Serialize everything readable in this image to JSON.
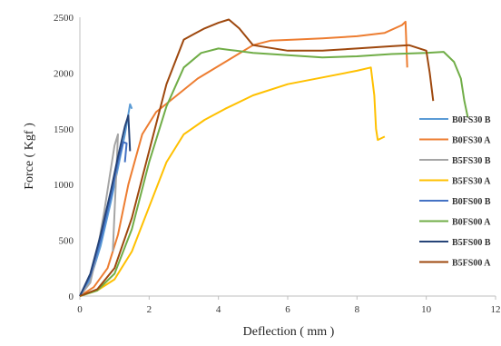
{
  "chart_data": {
    "type": "line",
    "title": "",
    "xlabel": "Deflection ( mm )",
    "ylabel": "Force ( Kgf )",
    "xlim": [
      0,
      12
    ],
    "ylim": [
      0,
      2500
    ],
    "x_ticks": [
      0,
      2,
      4,
      6,
      8,
      10,
      12
    ],
    "x_tick_labels": [
      "0",
      "2",
      "4",
      "6",
      "8",
      "10",
      "12"
    ],
    "y_ticks": [
      0,
      500,
      1000,
      1500,
      2000,
      2500
    ],
    "y_tick_labels": [
      "0",
      "500",
      "1000",
      "1500",
      "2000",
      "2500"
    ],
    "grid": false,
    "legend_position": "right",
    "series": [
      {
        "name": "B0FS30 B",
        "color": "#5b9bd5",
        "x": [
          0,
          0.3,
          0.6,
          0.9,
          1.1,
          1.3,
          1.45,
          1.5
        ],
        "y": [
          0,
          150,
          450,
          850,
          1150,
          1450,
          1720,
          1680
        ]
      },
      {
        "name": "B0FS30 A",
        "color": "#ed7d31",
        "x": [
          0,
          0.4,
          0.8,
          1.1,
          1.4,
          1.8,
          2.2,
          2.8,
          3.4,
          4.2,
          5.0,
          5.5,
          6.2,
          7.0,
          8.0,
          8.8,
          9.3,
          9.4,
          9.45
        ],
        "y": [
          0,
          80,
          250,
          550,
          1000,
          1450,
          1650,
          1800,
          1950,
          2100,
          2250,
          2290,
          2300,
          2310,
          2330,
          2360,
          2430,
          2460,
          2050
        ]
      },
      {
        "name": "B5FS30 B",
        "color": "#a5a5a5",
        "x": [
          0,
          0.3,
          0.5,
          0.7,
          0.85,
          1.0,
          1.1,
          0.95
        ],
        "y": [
          0,
          120,
          400,
          750,
          1050,
          1350,
          1450,
          400
        ]
      },
      {
        "name": "B5FS30 A",
        "color": "#ffc000",
        "x": [
          0,
          0.5,
          1.0,
          1.5,
          2.0,
          2.5,
          3.0,
          3.6,
          4.2,
          5.0,
          6.0,
          7.0,
          8.0,
          8.4,
          8.5,
          8.55,
          8.6,
          8.8
        ],
        "y": [
          0,
          50,
          150,
          400,
          800,
          1200,
          1450,
          1580,
          1680,
          1800,
          1900,
          1960,
          2020,
          2050,
          1800,
          1500,
          1400,
          1430
        ]
      },
      {
        "name": "B0FS00 B",
        "color": "#4472c4",
        "x": [
          0,
          0.3,
          0.6,
          0.9,
          1.1,
          1.25,
          1.35,
          1.3
        ],
        "y": [
          0,
          180,
          500,
          900,
          1200,
          1380,
          1370,
          1200
        ]
      },
      {
        "name": "B0FS00 A",
        "color": "#70ad47",
        "x": [
          0,
          0.5,
          1.0,
          1.5,
          2.0,
          2.5,
          3.0,
          3.5,
          4.0,
          4.5,
          5.0,
          6.0,
          7.0,
          8.0,
          9.0,
          10.0,
          10.5,
          10.8,
          11.0,
          11.1,
          11.2
        ],
        "y": [
          0,
          50,
          200,
          600,
          1200,
          1700,
          2050,
          2180,
          2220,
          2200,
          2180,
          2160,
          2140,
          2150,
          2170,
          2180,
          2190,
          2100,
          1950,
          1750,
          1600
        ]
      },
      {
        "name": "B5FS00 B",
        "color": "#264478",
        "x": [
          0,
          0.3,
          0.6,
          0.9,
          1.1,
          1.3,
          1.4,
          1.45
        ],
        "y": [
          0,
          200,
          550,
          950,
          1250,
          1520,
          1620,
          1300
        ]
      },
      {
        "name": "B5FS00 A",
        "color": "#9e480e",
        "x": [
          0,
          0.5,
          1.0,
          1.5,
          2.0,
          2.5,
          3.0,
          3.3,
          3.6,
          4.0,
          4.3,
          4.6,
          5.0,
          6.0,
          7.0,
          8.0,
          9.0,
          9.5,
          10.0,
          10.1,
          10.2
        ],
        "y": [
          0,
          60,
          250,
          700,
          1300,
          1900,
          2300,
          2350,
          2400,
          2450,
          2480,
          2400,
          2250,
          2200,
          2200,
          2220,
          2240,
          2250,
          2200,
          2000,
          1750
        ]
      }
    ]
  }
}
